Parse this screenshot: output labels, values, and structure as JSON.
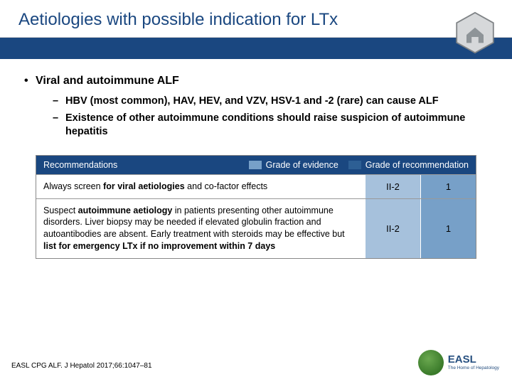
{
  "title": "Aetiologies with possible indication for LTx",
  "colors": {
    "primary": "#1a4780",
    "swatch_light": "#77a0c8",
    "swatch_dark": "#2d5f94",
    "cell_light": "#a6c1dc",
    "cell_dark": "#77a0c8"
  },
  "main_bullet": "Viral and autoimmune ALF",
  "sub_bullets": [
    "HBV (most common), HAV, HEV, and VZV, HSV-1 and -2 (rare) can cause ALF",
    "Existence of other autoimmune conditions should raise suspicion of autoimmune hepatitis"
  ],
  "table": {
    "header_label": "Recommendations",
    "legend_evidence": "Grade of evidence",
    "legend_rec": "Grade of recommendation",
    "rows": [
      {
        "html": "Always screen <b>for viral aetiologies</b> and co-factor effects",
        "evidence": "II-2",
        "rec": "1"
      },
      {
        "html": "Suspect <b>autoimmune aetiology</b> in patients presenting other autoimmune disorders. Liver biopsy may be needed if elevated globulin fraction and autoantibodies are absent. Early treatment with steroids may be effective but <b>list for emergency LTx if no improvement within 7 days</b>",
        "evidence": "II-2",
        "rec": "1"
      }
    ]
  },
  "citation": "EASL CPG ALF. J Hepatol 2017;66:1047–81",
  "logo": {
    "name": "EASL",
    "sub": "The Home of Hepatology"
  }
}
